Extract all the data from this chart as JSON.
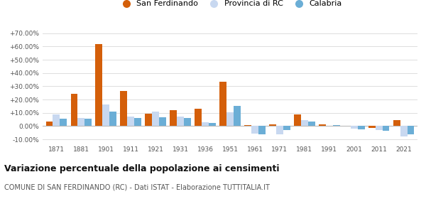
{
  "years": [
    1871,
    1881,
    1901,
    1911,
    1921,
    1931,
    1936,
    1951,
    1961,
    1971,
    1981,
    1991,
    2001,
    2011,
    2021
  ],
  "san_ferdinando": [
    3.5,
    24.5,
    62.0,
    26.5,
    9.5,
    12.0,
    13.0,
    33.5,
    0.5,
    1.0,
    8.5,
    1.5,
    0.0,
    -1.5,
    4.5
  ],
  "provincia_rc": [
    9.0,
    6.0,
    16.0,
    7.0,
    11.0,
    7.0,
    3.0,
    10.5,
    -5.5,
    -6.0,
    4.5,
    0.0,
    -2.0,
    -3.0,
    -8.0
  ],
  "calabria": [
    5.5,
    5.5,
    11.0,
    6.0,
    6.5,
    6.0,
    2.5,
    15.0,
    -6.0,
    -3.0,
    3.5,
    0.5,
    -2.5,
    -3.5,
    -6.0
  ],
  "color_sf": "#d45f0a",
  "color_prc": "#c8d8f0",
  "color_cal": "#6baed6",
  "title": "Variazione percentuale della popolazione ai censimenti",
  "subtitle": "COMUNE DI SAN FERDINANDO (RC) - Dati ISTAT - Elaborazione TUTTITALIA.IT",
  "legend_labels": [
    "San Ferdinando",
    "Provincia di RC",
    "Calabria"
  ],
  "yticks": [
    -10,
    0,
    10,
    20,
    30,
    40,
    50,
    60,
    70
  ],
  "ylim": [
    -13,
    74
  ],
  "background_color": "#ffffff",
  "grid_color": "#dddddd",
  "bar_width": 0.28
}
